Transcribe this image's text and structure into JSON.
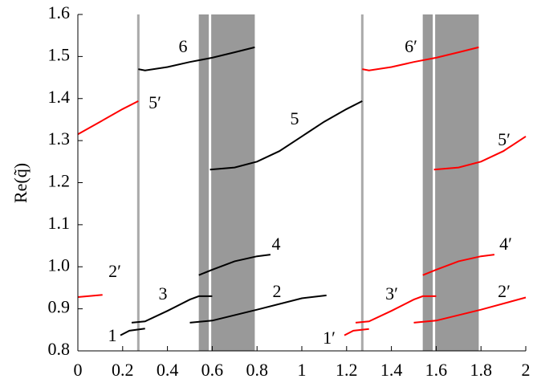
{
  "chart_data": {
    "type": "line",
    "ylabel": "Re(q̃)",
    "xlim": [
      0,
      2
    ],
    "xticks": [
      0,
      0.2,
      0.4,
      0.6,
      0.8,
      1,
      1.2,
      1.4,
      1.6,
      1.8,
      2
    ],
    "ylim": [
      0.8,
      1.6
    ],
    "yticks": [
      0.8,
      0.9,
      {
        "value": 1,
        "label": "1.0"
      },
      1.1,
      1.2,
      1.3,
      1.4,
      1.5,
      1.6
    ],
    "shaded_regions": [
      [
        0.54,
        0.79
      ],
      [
        1.54,
        1.79
      ]
    ],
    "shade_color": "#999999",
    "white_lines": [
      0.59,
      1.59
    ],
    "vlines": [
      0.27,
      1.27
    ],
    "vline_color": "#aaaaaa",
    "series": [
      {
        "name": "1",
        "color": "#000000",
        "x": [
          0.19,
          0.23,
          0.3
        ],
        "values": [
          0.837,
          0.848,
          0.853
        ]
      },
      {
        "name": "3",
        "color": "#000000",
        "x": [
          0.24,
          0.3,
          0.4,
          0.5,
          0.54,
          0.6
        ],
        "values": [
          0.867,
          0.87,
          0.895,
          0.922,
          0.93,
          0.93
        ]
      },
      {
        "name": "2",
        "color": "#000000",
        "x": [
          0.5,
          0.6,
          0.8,
          1.0,
          1.11
        ],
        "values": [
          0.867,
          0.872,
          0.898,
          0.925,
          0.932
        ]
      },
      {
        "name": "4",
        "color": "#000000",
        "x": [
          0.54,
          0.6,
          0.7,
          0.8,
          0.86
        ],
        "values": [
          0.98,
          0.993,
          1.013,
          1.025,
          1.029
        ]
      },
      {
        "name": "5",
        "color": "#000000",
        "x": [
          0.59,
          0.7,
          0.8,
          0.9,
          1.0,
          1.1,
          1.2,
          1.27
        ],
        "values": [
          1.231,
          1.236,
          1.25,
          1.275,
          1.31,
          1.345,
          1.375,
          1.394
        ]
      },
      {
        "name": "6",
        "color": "#000000",
        "x": [
          0.27,
          0.3,
          0.4,
          0.5,
          0.6,
          0.7,
          0.79
        ],
        "values": [
          1.47,
          1.467,
          1.475,
          1.487,
          1.497,
          1.51,
          1.522
        ]
      },
      {
        "name": "5′",
        "color": "#ff0000",
        "x": [
          0,
          0.1,
          0.2,
          0.27
        ],
        "values": [
          1.315,
          1.345,
          1.375,
          1.394
        ]
      },
      {
        "name": "2′",
        "color": "#ff0000",
        "x": [
          0,
          0.11
        ],
        "values": [
          0.928,
          0.933
        ]
      },
      {
        "name": "1′",
        "color": "#ff0000",
        "x": [
          1.19,
          1.23,
          1.3
        ],
        "values": [
          0.837,
          0.848,
          0.852
        ]
      },
      {
        "name": "3′",
        "color": "#ff0000",
        "x": [
          1.24,
          1.3,
          1.4,
          1.5,
          1.54,
          1.6
        ],
        "values": [
          0.867,
          0.87,
          0.895,
          0.922,
          0.93,
          0.93
        ]
      },
      {
        "name": "2′",
        "color": "#ff0000",
        "x": [
          1.5,
          1.6,
          1.8,
          2.0
        ],
        "values": [
          0.867,
          0.872,
          0.898,
          0.927
        ]
      },
      {
        "name": "4′",
        "color": "#ff0000",
        "x": [
          1.54,
          1.6,
          1.7,
          1.8,
          1.86
        ],
        "values": [
          0.98,
          0.993,
          1.013,
          1.025,
          1.029
        ]
      },
      {
        "name": "5′",
        "color": "#ff0000",
        "x": [
          1.59,
          1.7,
          1.8,
          1.9,
          2.0
        ],
        "values": [
          1.231,
          1.236,
          1.25,
          1.275,
          1.31
        ]
      },
      {
        "name": "6′",
        "color": "#ff0000",
        "x": [
          1.27,
          1.3,
          1.4,
          1.5,
          1.6,
          1.7,
          1.79
        ],
        "values": [
          1.47,
          1.467,
          1.475,
          1.487,
          1.497,
          1.51,
          1.522
        ]
      }
    ]
  }
}
